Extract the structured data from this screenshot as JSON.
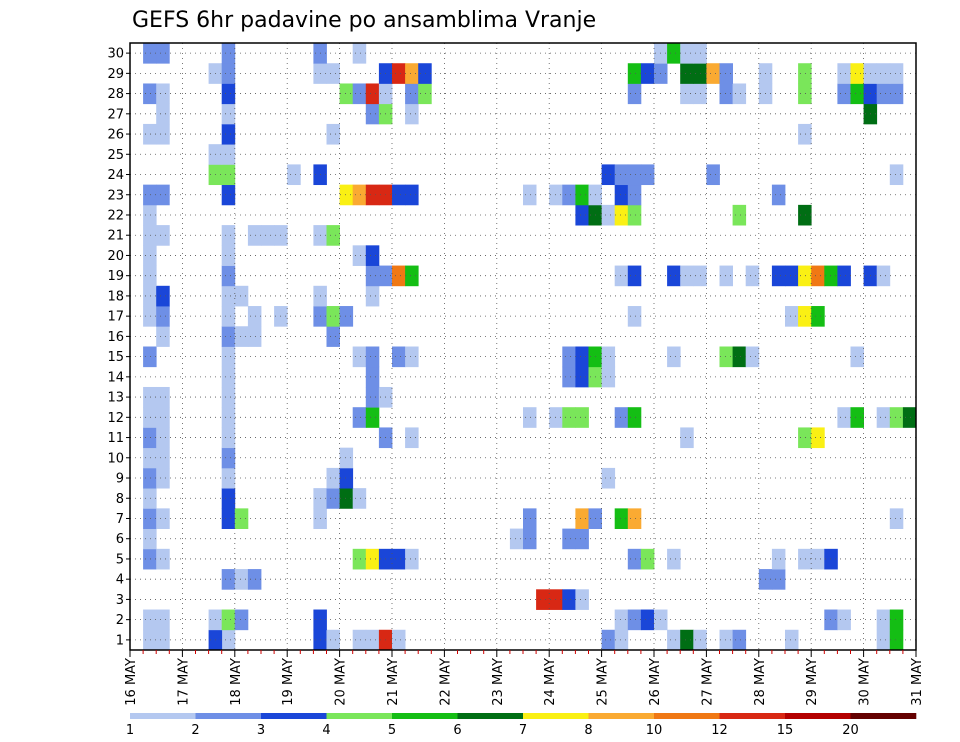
{
  "chart_data": {
    "type": "heatmap",
    "title": "GEFS 6hr padavine po ansamblima Vranje",
    "xlabel": "",
    "ylabel": "",
    "x_tick_labels": [
      "16 MAY",
      "17 MAY",
      "18 MAY",
      "19 MAY",
      "20 MAY",
      "21 MAY",
      "22 MAY",
      "23 MAY",
      "24 MAY",
      "25 MAY",
      "26 MAY",
      "27 MAY",
      "28 MAY",
      "29 MAY",
      "30 MAY",
      "31 MAY"
    ],
    "y_tick_labels": [
      "1",
      "2",
      "3",
      "4",
      "5",
      "6",
      "7",
      "8",
      "9",
      "10",
      "11",
      "12",
      "13",
      "14",
      "15",
      "16",
      "17",
      "18",
      "19",
      "20",
      "21",
      "22",
      "23",
      "24",
      "25",
      "26",
      "27",
      "28",
      "29",
      "30"
    ],
    "xlim": [
      0,
      60
    ],
    "ylim": [
      0.5,
      30.5
    ],
    "x_unit_note": "x = 6-hour step index starting at 16 MAY 00",
    "grid": true,
    "levels": [
      1,
      2,
      3,
      4,
      5,
      6,
      7,
      8,
      10,
      12,
      15,
      20
    ],
    "colors": [
      "#b4c8f0",
      "#6e8fe6",
      "#1a46d8",
      "#7ae65a",
      "#14be14",
      "#006e14",
      "#faf014",
      "#faaa32",
      "#f07814",
      "#d82814",
      "#b40000",
      "#640000"
    ],
    "cells": [
      [
        1,
        1,
        0
      ],
      [
        2,
        1,
        0
      ],
      [
        7,
        1,
        0
      ],
      [
        6,
        1,
        2
      ],
      [
        14,
        1,
        2
      ],
      [
        15,
        1,
        0
      ],
      [
        17,
        1,
        0
      ],
      [
        18,
        1,
        0
      ],
      [
        19,
        1,
        9
      ],
      [
        20,
        1,
        0
      ],
      [
        36,
        1,
        1
      ],
      [
        37,
        1,
        0
      ],
      [
        41,
        1,
        0
      ],
      [
        42,
        1,
        5
      ],
      [
        43,
        1,
        0
      ],
      [
        45,
        1,
        0
      ],
      [
        46,
        1,
        1
      ],
      [
        50,
        1,
        0
      ],
      [
        57,
        1,
        0
      ],
      [
        58,
        1,
        4
      ],
      [
        1,
        2,
        0
      ],
      [
        2,
        2,
        0
      ],
      [
        6,
        2,
        0
      ],
      [
        7,
        2,
        3
      ],
      [
        8,
        2,
        1
      ],
      [
        14,
        2,
        2
      ],
      [
        37,
        2,
        0
      ],
      [
        38,
        2,
        1
      ],
      [
        39,
        2,
        2
      ],
      [
        40,
        2,
        0
      ],
      [
        53,
        2,
        1
      ],
      [
        54,
        2,
        0
      ],
      [
        57,
        2,
        0
      ],
      [
        58,
        2,
        4
      ],
      [
        31,
        3,
        9
      ],
      [
        32,
        3,
        9
      ],
      [
        33,
        3,
        2
      ],
      [
        34,
        3,
        0
      ],
      [
        7,
        4,
        1
      ],
      [
        8,
        4,
        0
      ],
      [
        9,
        4,
        1
      ],
      [
        48,
        4,
        1
      ],
      [
        49,
        4,
        1
      ],
      [
        1,
        5,
        1
      ],
      [
        2,
        5,
        0
      ],
      [
        17,
        5,
        3
      ],
      [
        18,
        5,
        6
      ],
      [
        19,
        5,
        2
      ],
      [
        20,
        5,
        2
      ],
      [
        21,
        5,
        0
      ],
      [
        38,
        5,
        1
      ],
      [
        39,
        5,
        3
      ],
      [
        41,
        5,
        0
      ],
      [
        49,
        5,
        0
      ],
      [
        51,
        5,
        0
      ],
      [
        52,
        5,
        0
      ],
      [
        53,
        5,
        2
      ],
      [
        1,
        6,
        0
      ],
      [
        29,
        6,
        0
      ],
      [
        30,
        6,
        1
      ],
      [
        33,
        6,
        1
      ],
      [
        34,
        6,
        1
      ],
      [
        1,
        7,
        1
      ],
      [
        2,
        7,
        0
      ],
      [
        7,
        7,
        2
      ],
      [
        8,
        7,
        3
      ],
      [
        14,
        7,
        0
      ],
      [
        30,
        7,
        1
      ],
      [
        34,
        7,
        7
      ],
      [
        35,
        7,
        1
      ],
      [
        37,
        7,
        4
      ],
      [
        38,
        7,
        7
      ],
      [
        58,
        7,
        0
      ],
      [
        1,
        8,
        0
      ],
      [
        7,
        8,
        2
      ],
      [
        14,
        8,
        0
      ],
      [
        15,
        8,
        1
      ],
      [
        16,
        8,
        5
      ],
      [
        17,
        8,
        0
      ],
      [
        1,
        9,
        1
      ],
      [
        2,
        9,
        0
      ],
      [
        7,
        9,
        0
      ],
      [
        15,
        9,
        0
      ],
      [
        16,
        9,
        2
      ],
      [
        36,
        9,
        0
      ],
      [
        1,
        10,
        0
      ],
      [
        2,
        10,
        0
      ],
      [
        7,
        10,
        1
      ],
      [
        16,
        10,
        0
      ],
      [
        1,
        11,
        1
      ],
      [
        2,
        11,
        0
      ],
      [
        7,
        11,
        0
      ],
      [
        19,
        11,
        1
      ],
      [
        21,
        11,
        0
      ],
      [
        42,
        11,
        0
      ],
      [
        51,
        11,
        3
      ],
      [
        52,
        11,
        6
      ],
      [
        1,
        12,
        0
      ],
      [
        2,
        12,
        0
      ],
      [
        7,
        12,
        0
      ],
      [
        17,
        12,
        1
      ],
      [
        18,
        12,
        4
      ],
      [
        30,
        12,
        0
      ],
      [
        32,
        12,
        0
      ],
      [
        33,
        12,
        3
      ],
      [
        34,
        12,
        3
      ],
      [
        37,
        12,
        1
      ],
      [
        38,
        12,
        4
      ],
      [
        54,
        12,
        0
      ],
      [
        55,
        12,
        4
      ],
      [
        57,
        12,
        0
      ],
      [
        58,
        12,
        3
      ],
      [
        59,
        12,
        5
      ],
      [
        1,
        13,
        0
      ],
      [
        2,
        13,
        0
      ],
      [
        7,
        13,
        0
      ],
      [
        18,
        13,
        1
      ],
      [
        19,
        13,
        0
      ],
      [
        7,
        14,
        0
      ],
      [
        18,
        14,
        1
      ],
      [
        33,
        14,
        1
      ],
      [
        34,
        14,
        2
      ],
      [
        35,
        14,
        3
      ],
      [
        36,
        14,
        0
      ],
      [
        1,
        15,
        1
      ],
      [
        7,
        15,
        0
      ],
      [
        17,
        15,
        0
      ],
      [
        18,
        15,
        1
      ],
      [
        20,
        15,
        1
      ],
      [
        21,
        15,
        0
      ],
      [
        33,
        15,
        1
      ],
      [
        34,
        15,
        2
      ],
      [
        35,
        15,
        4
      ],
      [
        36,
        15,
        0
      ],
      [
        41,
        15,
        0
      ],
      [
        45,
        15,
        3
      ],
      [
        46,
        15,
        5
      ],
      [
        47,
        15,
        0
      ],
      [
        55,
        15,
        0
      ],
      [
        2,
        16,
        0
      ],
      [
        7,
        16,
        1
      ],
      [
        8,
        16,
        0
      ],
      [
        9,
        16,
        0
      ],
      [
        15,
        16,
        1
      ],
      [
        1,
        17,
        0
      ],
      [
        2,
        17,
        1
      ],
      [
        7,
        17,
        0
      ],
      [
        9,
        17,
        0
      ],
      [
        11,
        17,
        0
      ],
      [
        14,
        17,
        1
      ],
      [
        15,
        17,
        3
      ],
      [
        16,
        17,
        1
      ],
      [
        38,
        17,
        0
      ],
      [
        50,
        17,
        0
      ],
      [
        51,
        17,
        6
      ],
      [
        52,
        17,
        4
      ],
      [
        1,
        18,
        0
      ],
      [
        2,
        18,
        2
      ],
      [
        7,
        18,
        0
      ],
      [
        8,
        18,
        0
      ],
      [
        14,
        18,
        0
      ],
      [
        18,
        18,
        0
      ],
      [
        1,
        19,
        0
      ],
      [
        7,
        19,
        1
      ],
      [
        18,
        19,
        1
      ],
      [
        19,
        19,
        1
      ],
      [
        20,
        19,
        8
      ],
      [
        21,
        19,
        4
      ],
      [
        37,
        19,
        0
      ],
      [
        38,
        19,
        2
      ],
      [
        41,
        19,
        2
      ],
      [
        42,
        19,
        0
      ],
      [
        43,
        19,
        0
      ],
      [
        45,
        19,
        0
      ],
      [
        47,
        19,
        0
      ],
      [
        49,
        19,
        2
      ],
      [
        50,
        19,
        2
      ],
      [
        51,
        19,
        6
      ],
      [
        52,
        19,
        8
      ],
      [
        53,
        19,
        4
      ],
      [
        54,
        19,
        2
      ],
      [
        56,
        19,
        2
      ],
      [
        57,
        19,
        0
      ],
      [
        1,
        20,
        0
      ],
      [
        7,
        20,
        0
      ],
      [
        17,
        20,
        0
      ],
      [
        18,
        20,
        2
      ],
      [
        1,
        21,
        0
      ],
      [
        2,
        21,
        0
      ],
      [
        7,
        21,
        0
      ],
      [
        9,
        21,
        0
      ],
      [
        10,
        21,
        0
      ],
      [
        11,
        21,
        0
      ],
      [
        14,
        21,
        0
      ],
      [
        15,
        21,
        3
      ],
      [
        1,
        22,
        0
      ],
      [
        34,
        22,
        2
      ],
      [
        35,
        22,
        5
      ],
      [
        36,
        22,
        0
      ],
      [
        37,
        22,
        6
      ],
      [
        38,
        22,
        3
      ],
      [
        46,
        22,
        3
      ],
      [
        51,
        22,
        5
      ],
      [
        1,
        23,
        1
      ],
      [
        2,
        23,
        1
      ],
      [
        7,
        23,
        2
      ],
      [
        16,
        23,
        6
      ],
      [
        17,
        23,
        7
      ],
      [
        18,
        23,
        9
      ],
      [
        19,
        23,
        9
      ],
      [
        20,
        23,
        2
      ],
      [
        21,
        23,
        2
      ],
      [
        30,
        23,
        0
      ],
      [
        32,
        23,
        0
      ],
      [
        33,
        23,
        1
      ],
      [
        34,
        23,
        4
      ],
      [
        35,
        23,
        0
      ],
      [
        37,
        23,
        2
      ],
      [
        38,
        23,
        1
      ],
      [
        49,
        23,
        1
      ],
      [
        6,
        24,
        3
      ],
      [
        7,
        24,
        3
      ],
      [
        12,
        24,
        0
      ],
      [
        14,
        24,
        2
      ],
      [
        36,
        24,
        2
      ],
      [
        37,
        24,
        1
      ],
      [
        38,
        24,
        1
      ],
      [
        39,
        24,
        1
      ],
      [
        44,
        24,
        1
      ],
      [
        58,
        24,
        0
      ],
      [
        6,
        25,
        0
      ],
      [
        7,
        25,
        0
      ],
      [
        1,
        26,
        0
      ],
      [
        2,
        26,
        0
      ],
      [
        7,
        26,
        2
      ],
      [
        15,
        26,
        0
      ],
      [
        51,
        26,
        0
      ],
      [
        2,
        27,
        0
      ],
      [
        7,
        27,
        0
      ],
      [
        18,
        27,
        1
      ],
      [
        19,
        27,
        3
      ],
      [
        21,
        27,
        0
      ],
      [
        56,
        27,
        5
      ],
      [
        1,
        28,
        1
      ],
      [
        2,
        28,
        0
      ],
      [
        7,
        28,
        2
      ],
      [
        16,
        28,
        3
      ],
      [
        17,
        28,
        1
      ],
      [
        18,
        28,
        9
      ],
      [
        19,
        28,
        0
      ],
      [
        21,
        28,
        1
      ],
      [
        22,
        28,
        3
      ],
      [
        38,
        28,
        1
      ],
      [
        42,
        28,
        0
      ],
      [
        43,
        28,
        0
      ],
      [
        45,
        28,
        1
      ],
      [
        46,
        28,
        0
      ],
      [
        48,
        28,
        0
      ],
      [
        51,
        28,
        3
      ],
      [
        54,
        28,
        1
      ],
      [
        55,
        28,
        4
      ],
      [
        56,
        28,
        2
      ],
      [
        57,
        28,
        1
      ],
      [
        58,
        28,
        1
      ],
      [
        6,
        29,
        0
      ],
      [
        7,
        29,
        1
      ],
      [
        14,
        29,
        0
      ],
      [
        15,
        29,
        0
      ],
      [
        19,
        29,
        2
      ],
      [
        20,
        29,
        9
      ],
      [
        21,
        29,
        7
      ],
      [
        22,
        29,
        2
      ],
      [
        38,
        29,
        4
      ],
      [
        39,
        29,
        2
      ],
      [
        40,
        29,
        1
      ],
      [
        42,
        29,
        5
      ],
      [
        43,
        29,
        5
      ],
      [
        44,
        29,
        7
      ],
      [
        45,
        29,
        1
      ],
      [
        48,
        29,
        0
      ],
      [
        51,
        29,
        3
      ],
      [
        54,
        29,
        0
      ],
      [
        55,
        29,
        6
      ],
      [
        56,
        29,
        0
      ],
      [
        57,
        29,
        0
      ],
      [
        58,
        29,
        0
      ],
      [
        1,
        30,
        1
      ],
      [
        2,
        30,
        1
      ],
      [
        7,
        30,
        1
      ],
      [
        14,
        30,
        1
      ],
      [
        17,
        30,
        0
      ],
      [
        40,
        30,
        0
      ],
      [
        41,
        30,
        4
      ],
      [
        42,
        30,
        0
      ],
      [
        43,
        30,
        0
      ]
    ]
  }
}
